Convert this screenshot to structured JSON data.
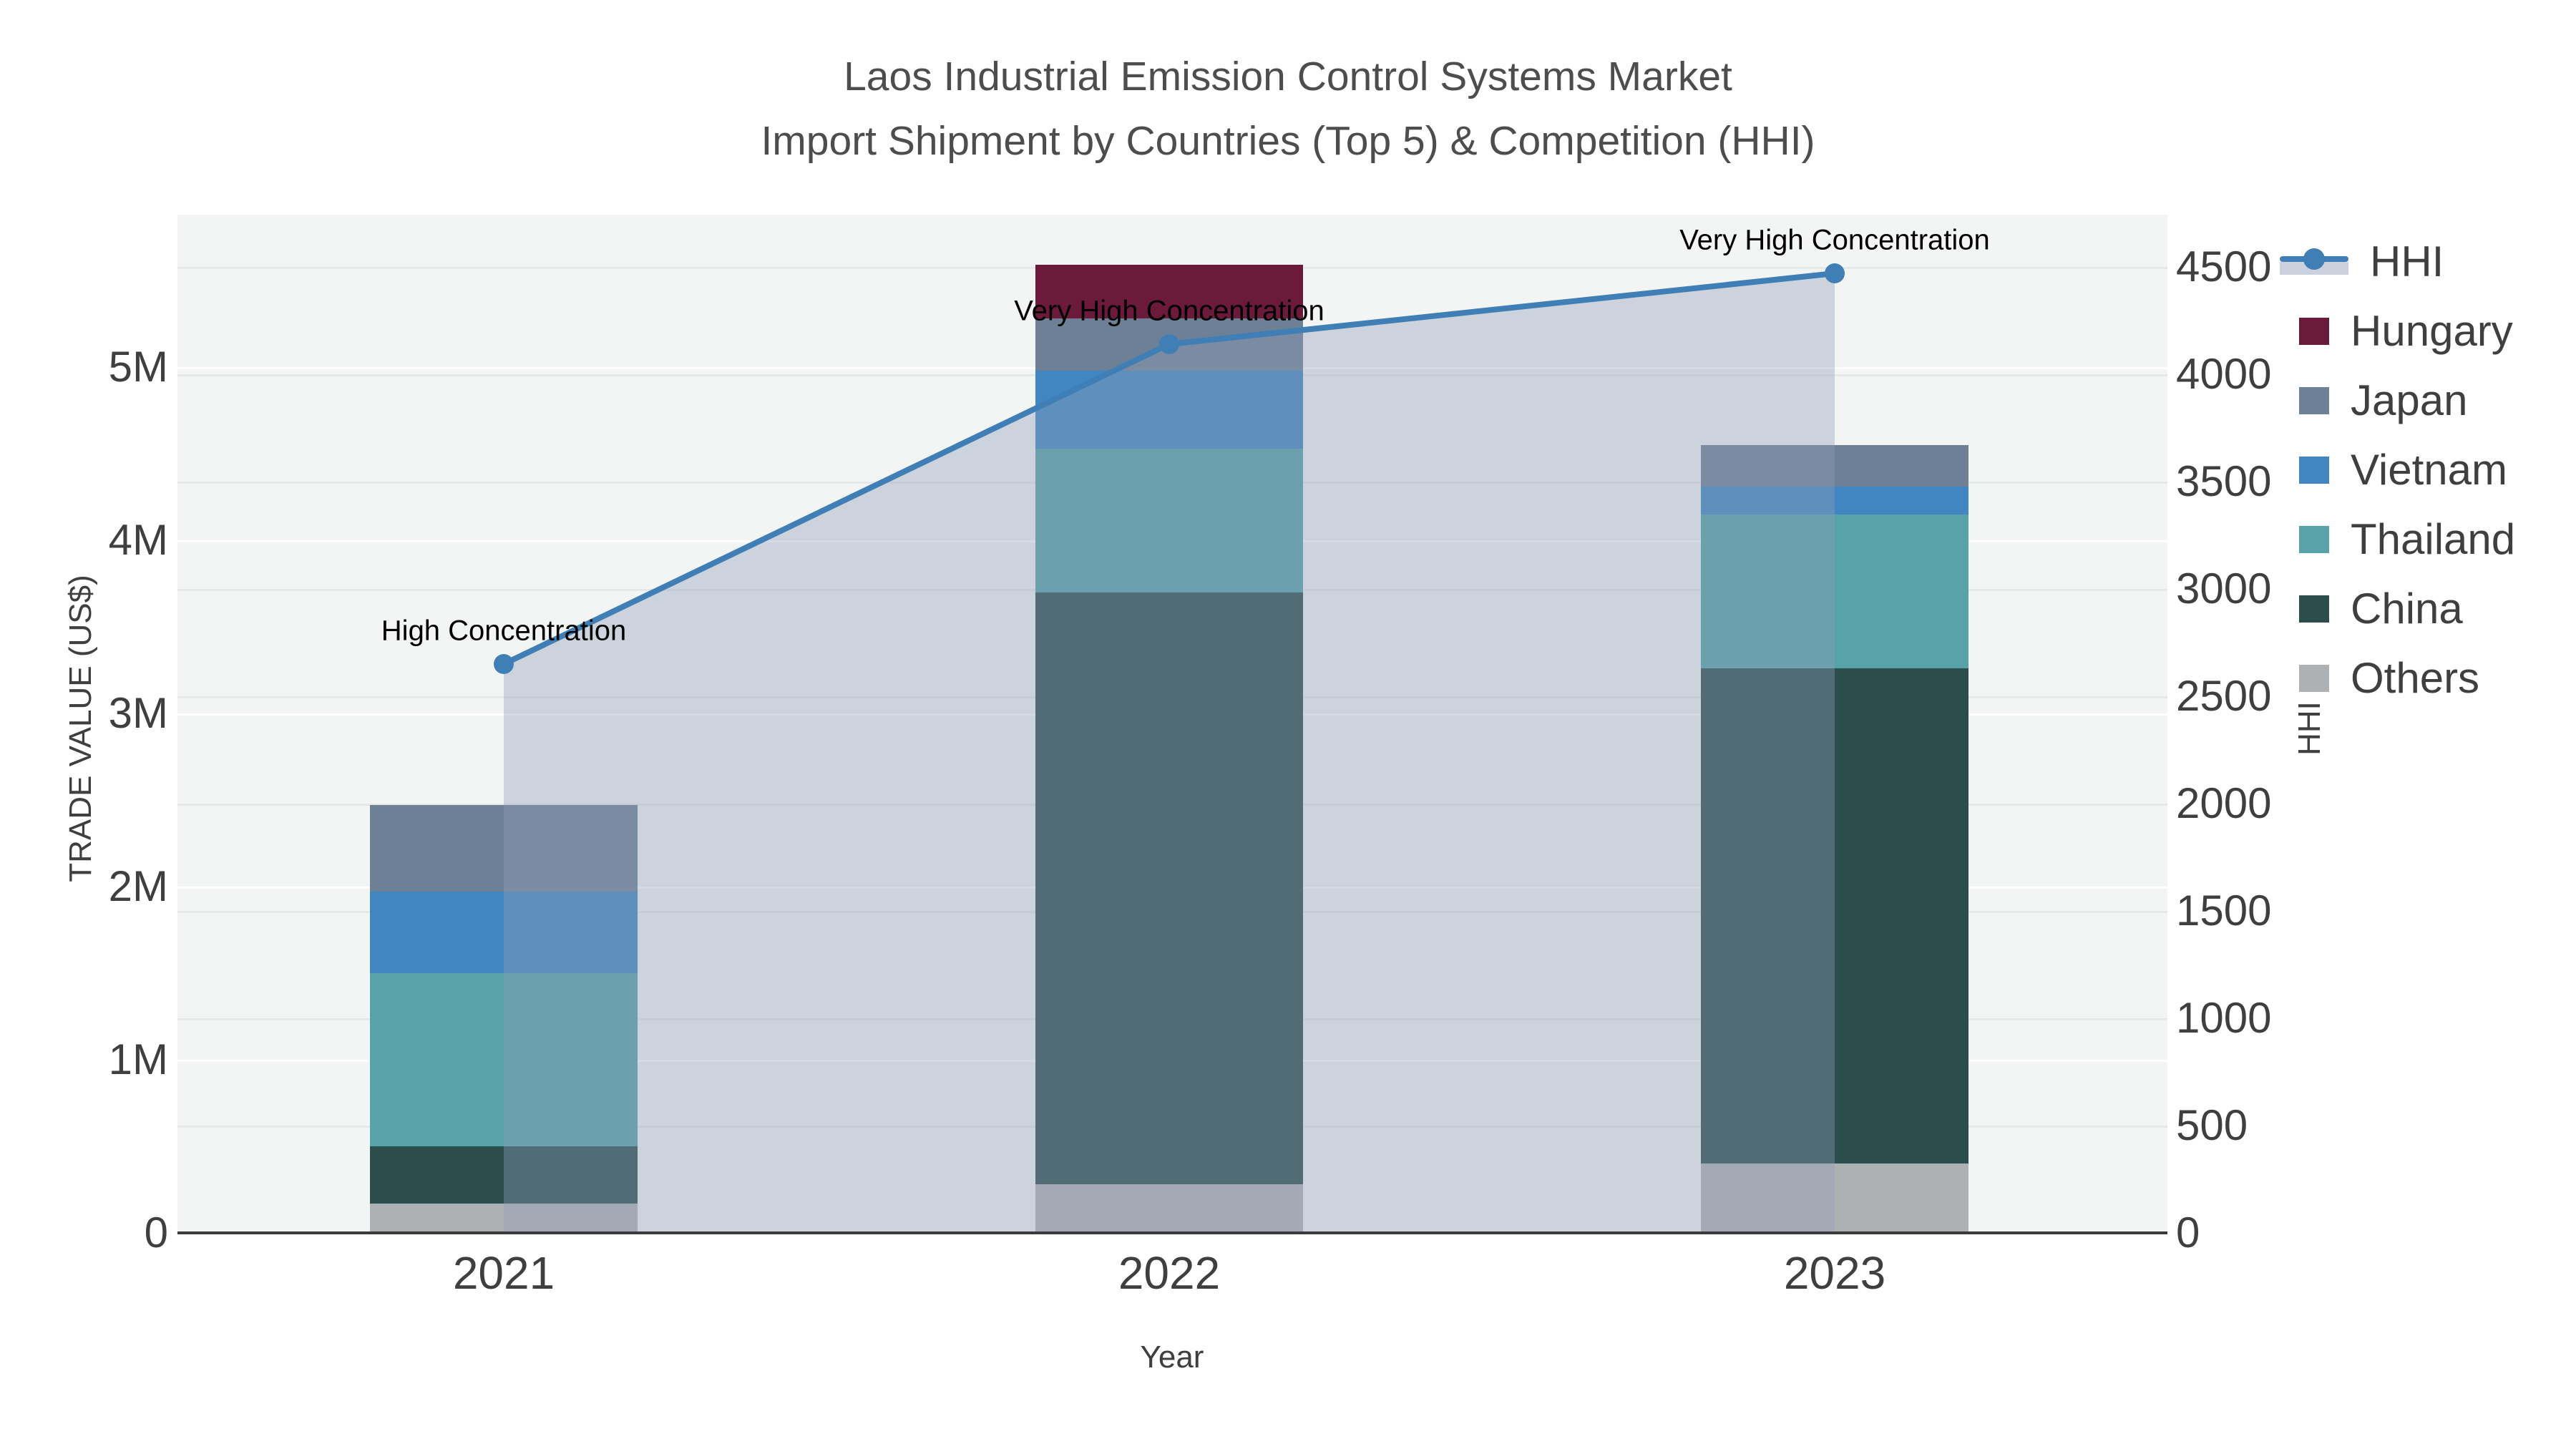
{
  "title": {
    "line1": "Laos Industrial Emission Control Systems Market",
    "line2": "Import Shipment by Countries (Top 5) & Competition (HHI)"
  },
  "axes": {
    "x": {
      "title": "Year",
      "categories": [
        "2021",
        "2022",
        "2023"
      ]
    },
    "y_left": {
      "title": "TRADE VALUE (US$)",
      "ticks": [
        "0",
        "1M",
        "2M",
        "3M",
        "4M",
        "5M"
      ]
    },
    "y_right": {
      "title": "HHI",
      "ticks": [
        "0",
        "500",
        "1000",
        "1500",
        "2000",
        "2500",
        "3000",
        "3500",
        "4000",
        "4500"
      ]
    }
  },
  "legend": {
    "items": [
      {
        "label": "HHI",
        "kind": "line",
        "color": "#3f7fb6"
      },
      {
        "label": "Hungary",
        "kind": "bar",
        "color": "#6b1a3a"
      },
      {
        "label": "Japan",
        "kind": "bar",
        "color": "#6e8095"
      },
      {
        "label": "Vietnam",
        "kind": "bar",
        "color": "#4286c1"
      },
      {
        "label": "Thailand",
        "kind": "bar",
        "color": "#58a2a9"
      },
      {
        "label": "China",
        "kind": "bar",
        "color": "#2b4e4c"
      },
      {
        "label": "Others",
        "kind": "bar",
        "color": "#aeb1b3"
      }
    ]
  },
  "chart_data": {
    "type": "bar",
    "subtype": "stacked-bars-with-line-overlay",
    "title": "Laos Industrial Emission Control Systems Market Import Shipment by Countries (Top 5) & Competition (HHI)",
    "xlabel": "Year",
    "ylabel_left": "TRADE VALUE (US$)",
    "ylabel_right": "HHI",
    "categories": [
      "2021",
      "2022",
      "2023"
    ],
    "unit": "US$ millions",
    "stack_order_bottom_to_top": [
      "Others",
      "China",
      "Thailand",
      "Vietnam",
      "Japan",
      "Hungary"
    ],
    "series": [
      {
        "name": "Hungary",
        "color": "#6b1a3a",
        "values": [
          0,
          0.31,
          0
        ]
      },
      {
        "name": "Japan",
        "color": "#6e8095",
        "values": [
          0.5,
          0.3,
          0.24
        ]
      },
      {
        "name": "Vietnam",
        "color": "#4286c1",
        "values": [
          0.47,
          0.45,
          0.16
        ]
      },
      {
        "name": "Thailand",
        "color": "#58a2a9",
        "values": [
          1.0,
          0.83,
          0.89
        ]
      },
      {
        "name": "China",
        "color": "#2b4e4c",
        "values": [
          0.33,
          3.42,
          2.86
        ]
      },
      {
        "name": "Others",
        "color": "#aeb1b3",
        "values": [
          0.17,
          0.28,
          0.4
        ]
      }
    ],
    "totals": [
      2.47,
      5.59,
      4.55
    ],
    "hhi_line": {
      "name": "HHI",
      "color": "#3f7fb6",
      "fill_color": "rgba(144,158,183,0.38)",
      "values": [
        2650,
        4140,
        4470
      ]
    },
    "annotations": [
      {
        "text": "High Concentration",
        "category_index": 0
      },
      {
        "text": "Very High Concentration",
        "category_index": 1
      },
      {
        "text": "Very High Concentration",
        "category_index": 2
      }
    ],
    "ylim_left": [
      0,
      5.88
    ],
    "ylim_right": [
      0,
      4743
    ],
    "grid": true,
    "legend_position": "right"
  }
}
